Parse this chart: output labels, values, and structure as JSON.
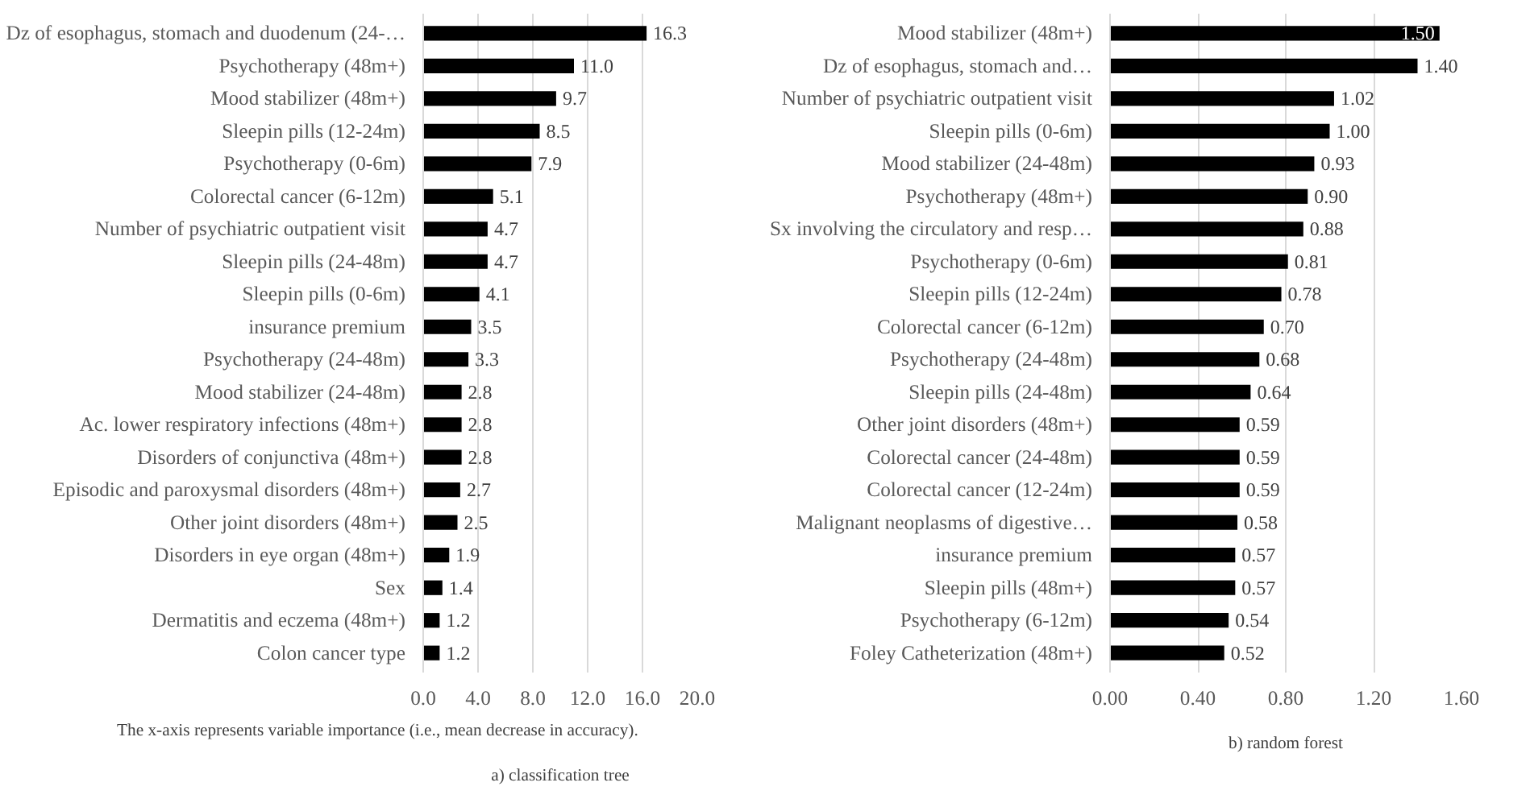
{
  "chart_data": [
    {
      "type": "bar",
      "orientation": "horizontal",
      "title": "a) classification tree",
      "annotations": [
        "The x-axis represents variable importance (i.e., mean decrease in accuracy)."
      ],
      "categories": [
        "Dz of esophagus, stomach and duodenum (24-…",
        "Psychotherapy (48m+)",
        "Mood stabilizer (48m+)",
        "Sleepin pills (12-24m)",
        "Psychotherapy (0-6m)",
        "Colorectal cancer (6-12m)",
        "Number of psychiatric outpatient visit",
        "Sleepin pills (24-48m)",
        "Sleepin pills (0-6m)",
        "insurance premium",
        "Psychotherapy (24-48m)",
        "Mood stabilizer (24-48m)",
        "Ac. lower respiratory infections (48m+)",
        "Disorders of conjunctiva (48m+)",
        "Episodic and paroxysmal disorders (48m+)",
        "Other joint disorders (48m+)",
        "Disorders in eye organ (48m+)",
        "Sex",
        "Dermatitis and eczema (48m+)",
        "Colon cancer type"
      ],
      "values": [
        16.3,
        11.0,
        9.7,
        8.5,
        7.9,
        5.1,
        4.7,
        4.7,
        4.1,
        3.5,
        3.3,
        2.8,
        2.8,
        2.8,
        2.7,
        2.5,
        1.9,
        1.4,
        1.2,
        1.2
      ],
      "value_labels": [
        "16.3",
        "11.0",
        "9.7",
        "8.5",
        "7.9",
        "5.1",
        "4.7",
        "4.7",
        "4.1",
        "3.5",
        "3.3",
        "2.8",
        "2.8",
        "2.8",
        "2.7",
        "2.5",
        "1.9",
        "1.4",
        "1.2",
        "1.2"
      ],
      "color": "#000000",
      "xlim": [
        0,
        20
      ],
      "xticks": [
        {
          "value": 0,
          "label": "0.0"
        },
        {
          "value": 4,
          "label": "4.0"
        },
        {
          "value": 8,
          "label": "8.0"
        },
        {
          "value": 12,
          "label": "12.0"
        },
        {
          "value": 16,
          "label": "16.0"
        },
        {
          "value": 20,
          "label": "20.0"
        }
      ],
      "grid": "x"
    },
    {
      "type": "bar",
      "orientation": "horizontal",
      "title": "b) random forest",
      "categories": [
        "Mood stabilizer (48m+)",
        "Dz of esophagus, stomach and…",
        "Number of psychiatric outpatient visit",
        "Sleepin pills (0-6m)",
        "Mood stabilizer (24-48m)",
        "Psychotherapy (48m+)",
        "Sx involving the circulatory and resp…",
        "Psychotherapy (0-6m)",
        "Sleepin pills (12-24m)",
        "Colorectal cancer (6-12m)",
        "Psychotherapy (24-48m)",
        "Sleepin pills (24-48m)",
        "Other joint disorders (48m+)",
        "Colorectal cancer (24-48m)",
        "Colorectal cancer (12-24m)",
        "Malignant neoplasms of digestive…",
        "insurance premium",
        "Sleepin pills (48m+)",
        "Psychotherapy (6-12m)",
        "Foley Catheterization (48m+)"
      ],
      "values": [
        1.5,
        1.4,
        1.02,
        1.0,
        0.93,
        0.9,
        0.88,
        0.81,
        0.78,
        0.7,
        0.68,
        0.64,
        0.59,
        0.59,
        0.59,
        0.58,
        0.57,
        0.57,
        0.54,
        0.52
      ],
      "value_labels": [
        "1.50",
        "1.40",
        "1.02",
        "1.00",
        "0.93",
        "0.90",
        "0.88",
        "0.81",
        "0.78",
        "0.70",
        "0.68",
        "0.64",
        "0.59",
        "0.59",
        "0.59",
        "0.58",
        "0.57",
        "0.57",
        "0.54",
        "0.52"
      ],
      "color": "#000000",
      "xlim": [
        0,
        1.6
      ],
      "xticks": [
        {
          "value": 0,
          "label": "0.00"
        },
        {
          "value": 0.4,
          "label": "0.40"
        },
        {
          "value": 0.8,
          "label": "0.80"
        },
        {
          "value": 1.2,
          "label": "1.20"
        },
        {
          "value": 1.6,
          "label": "1.60"
        }
      ],
      "grid": "x"
    }
  ]
}
